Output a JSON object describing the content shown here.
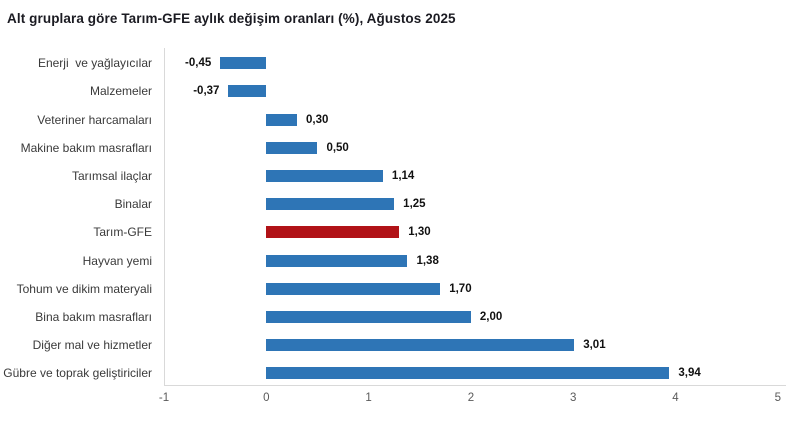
{
  "colors": {
    "bar": "#2e75b6",
    "highlight_bar": "#b11217",
    "axis_line": "#d9d9d9",
    "title_text": "#1b1b22",
    "category_text": "#3a3a3a",
    "value_text": "#111111",
    "tick_text": "#5a5a5a",
    "background": "#ffffff"
  },
  "chart_data": {
    "type": "bar",
    "orientation": "horizontal",
    "title": "Alt gruplara göre Tarım-GFE aylık değişim oranları (%), Ağustos 2025",
    "categories": [
      "Enerji  ve yağlayıcılar",
      "Malzemeler",
      "Veteriner harcamaları",
      "Makine bakım masrafları",
      "Tarımsal ilaçlar",
      "Binalar",
      "Tarım-GFE",
      "Hayvan yemi",
      "Tohum ve dikim materyali",
      "Bina bakım masrafları",
      "Diğer mal ve hizmetler",
      "Gübre ve toprak geliştiriciler"
    ],
    "values": [
      -0.45,
      -0.37,
      0.3,
      0.5,
      1.14,
      1.25,
      1.3,
      1.38,
      1.7,
      2.0,
      3.01,
      3.94
    ],
    "value_labels": [
      "-0,45",
      "-0,37",
      "0,30",
      "0,50",
      "1,14",
      "1,25",
      "1,30",
      "1,38",
      "1,70",
      "2,00",
      "3,01",
      "3,94"
    ],
    "highlight_index": 6,
    "highlight_category": "Tarım-GFE",
    "xlim": [
      -1,
      5
    ],
    "x_ticks": [
      -1,
      0,
      1,
      2,
      3,
      4,
      5
    ],
    "x_tick_labels": [
      "-1",
      "0",
      "1",
      "2",
      "3",
      "4",
      "5"
    ],
    "xlabel": "",
    "ylabel": "",
    "grid": false,
    "legend_position": "none"
  }
}
